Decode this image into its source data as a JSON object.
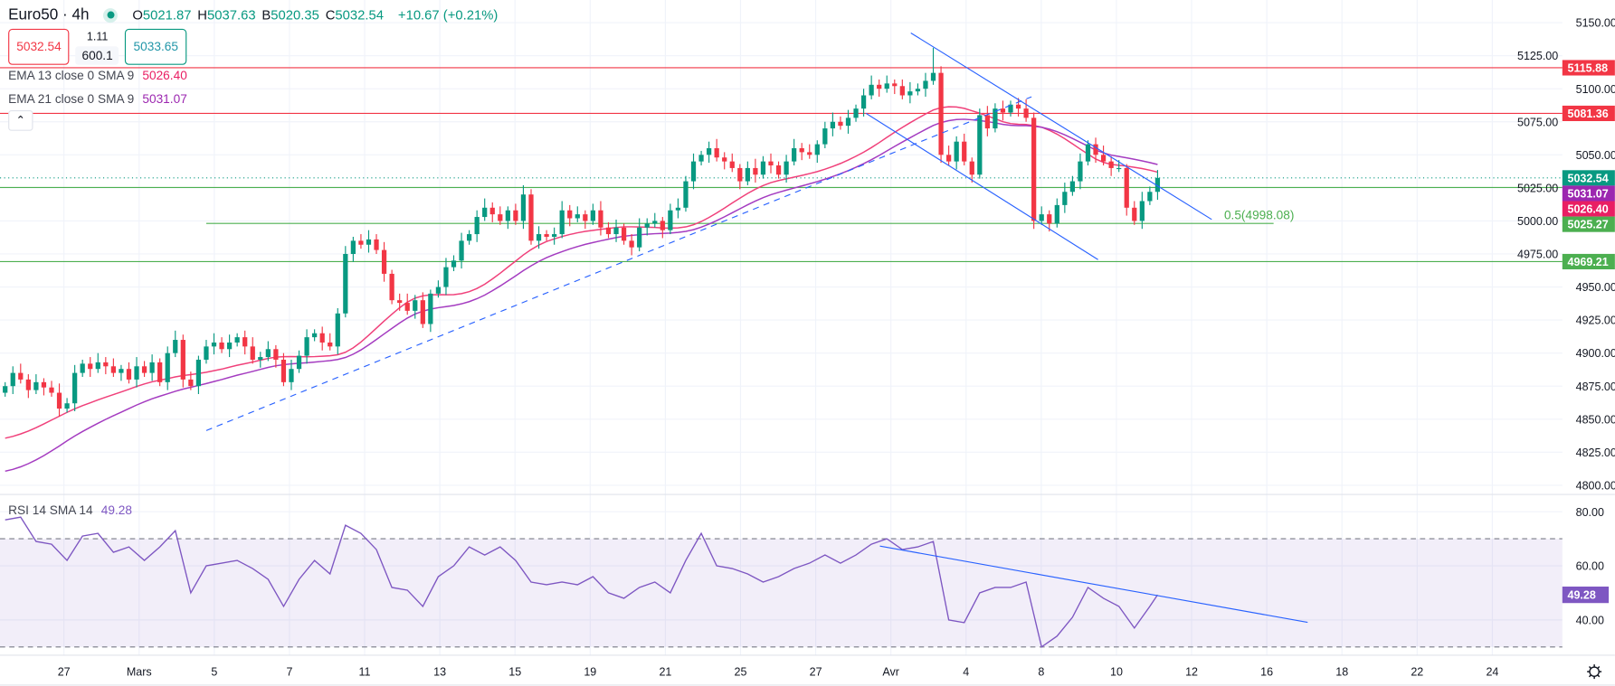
{
  "header": {
    "symbol": "Euro50 · 4h",
    "status_color": "#089981",
    "ohlc": [
      {
        "label": "O",
        "value": "5021.87"
      },
      {
        "label": "H",
        "value": "5037.63"
      },
      {
        "label": "B",
        "value": "5020.35"
      },
      {
        "label": "C",
        "value": "5032.54"
      }
    ],
    "change": "+10.67 (+0.21%)",
    "sell_price": "5032.54",
    "spread_top": "1.11",
    "spread_bottom": "600.1",
    "buy_price": "5033.65",
    "collapse_icon": "chevron-up-icon"
  },
  "indicators": [
    {
      "label": "EMA 13 close 0 SMA 9",
      "value": "5026.40",
      "color": "#e91e63"
    },
    {
      "label": "EMA 21 close 0 SMA 9",
      "value": "5031.07",
      "color": "#9c27b0"
    }
  ],
  "rsi_legend": {
    "label": "RSI 14 SMA 14",
    "value": "49.28",
    "color": "#7e57c2"
  },
  "chart_data": [
    {
      "type": "candlestick",
      "title": "Euro50 · 4h",
      "ylim": [
        4790,
        5160
      ],
      "y_ticks": [
        "5150.00",
        "5125.00",
        "5100.00",
        "5075.00",
        "5050.00",
        "5025.00",
        "5000.00",
        "4975.00",
        "4950.00",
        "4925.00",
        "4900.00",
        "4875.00",
        "4850.00",
        "4825.00",
        "4800.00"
      ],
      "x_tick_labels": [
        "27",
        "Mars",
        "5",
        "7",
        "11",
        "13",
        "15",
        "19",
        "21",
        "25",
        "27",
        "Avr",
        "4",
        "8",
        "10",
        "12",
        "16",
        "18",
        "22",
        "24"
      ],
      "grid": true,
      "colors": {
        "up": "#089981",
        "down": "#f23645",
        "ema13": "#f0407a",
        "ema21": "#a43bc0"
      },
      "close": [
        4875,
        4885,
        4880,
        4872,
        4878,
        4874,
        4870,
        4858,
        4862,
        4885,
        4892,
        4888,
        4893,
        4890,
        4885,
        4888,
        4880,
        4890,
        4885,
        4893,
        4878,
        4900,
        4910,
        4880,
        4875,
        4895,
        4905,
        4908,
        4903,
        4908,
        4912,
        4905,
        4895,
        4897,
        4903,
        4895,
        4878,
        4888,
        4898,
        4912,
        4915,
        4908,
        4905,
        4930,
        4975,
        4985,
        4982,
        4986,
        4978,
        4960,
        4940,
        4938,
        4932,
        4940,
        4922,
        4945,
        4950,
        4965,
        4970,
        4985,
        4990,
        5003,
        5010,
        5005,
        5000,
        5008,
        5000,
        5020,
        4985,
        4990,
        4988,
        4990,
        5008,
        5002,
        5005,
        5000,
        5008,
        4995,
        4990,
        4995,
        4985,
        4980,
        4995,
        4998,
        5000,
        4993,
        5008,
        5010,
        5030,
        5045,
        5050,
        5055,
        5048,
        5045,
        5040,
        5030,
        5040,
        5035,
        5045,
        5042,
        5035,
        5045,
        5055,
        5052,
        5050,
        5058,
        5070,
        5075,
        5072,
        5078,
        5085,
        5095,
        5103,
        5100,
        5104,
        5102,
        5095,
        5098,
        5100,
        5106,
        5112,
        5050,
        5045,
        5060,
        5045,
        5035,
        5080,
        5070,
        5085,
        5082,
        5088,
        5085,
        5078,
        5000,
        5005,
        4998,
        5012,
        5022,
        5030,
        5045,
        5058,
        5050,
        5045,
        5040,
        5040,
        5010,
        5000,
        5015,
        5022,
        5032.54
      ],
      "notable_high": {
        "value": 5131,
        "near_date": "Avr"
      },
      "horizontal_levels": [
        {
          "value": 5115.88,
          "label": "5115.88",
          "color": "#f23645"
        },
        {
          "value": 5081.36,
          "label": "5081.36",
          "color": "#f23645"
        },
        {
          "value": 5025.27,
          "label": "5025.27",
          "color": "#4caf50"
        },
        {
          "value": 4969.21,
          "label": "4969.21",
          "color": "#4caf50"
        }
      ],
      "fib_level": {
        "value": 4998.08,
        "label": "0.5(4998.08)",
        "color": "#4caf50"
      },
      "last_price": {
        "value": 5032.54,
        "label": "5032.54",
        "color": "#089981"
      },
      "ema_labels": [
        {
          "label": "5031.07",
          "color": "#9c27b0"
        },
        {
          "label": "5026.40",
          "color": "#e91e63"
        }
      ],
      "trendlines": [
        {
          "style": "dashed",
          "color": "#2962ff",
          "from": [
            26,
            4841.4
          ],
          "to": [
            132.7,
            5093.9
          ]
        },
        {
          "style": "solid",
          "color": "#2962ff",
          "from": [
            117.1,
            5142.2
          ],
          "to": [
            156,
            5001.1
          ]
        },
        {
          "style": "solid",
          "color": "#2962ff",
          "from": [
            111.3,
            5081.4
          ],
          "to": [
            141.3,
            4970.7
          ]
        }
      ]
    },
    {
      "type": "line",
      "title": "RSI 14 SMA 14",
      "ylim": [
        25,
        85
      ],
      "y_ticks": [
        "80.00",
        "60.00",
        "40.00"
      ],
      "bands": [
        70,
        30
      ],
      "color": "#7e57c2",
      "band_fill": "#7e57c2",
      "values": [
        77,
        78,
        69,
        68,
        62,
        71,
        72,
        65,
        67,
        62,
        67,
        73,
        50,
        60,
        61,
        62,
        59,
        55,
        45,
        55,
        62,
        57,
        75,
        72,
        66,
        52,
        51,
        45,
        56,
        60,
        67,
        64,
        67,
        62,
        54,
        53,
        54,
        53,
        56,
        50,
        48,
        52,
        54,
        50,
        62,
        72,
        60,
        59,
        57,
        54,
        56,
        59,
        61,
        64,
        61,
        64,
        68,
        70,
        66,
        67,
        69,
        40,
        39,
        50,
        52,
        52,
        54,
        30,
        34,
        41,
        52,
        48,
        45,
        37,
        45,
        49.28
      ],
      "last_label": "49.28",
      "trendline": {
        "style": "solid",
        "color": "#2962ff",
        "from": [
          113.1,
          67.3
        ],
        "to": [
          168.4,
          39.1
        ]
      }
    }
  ],
  "footer": {
    "settings_icon": "gear-icon"
  }
}
